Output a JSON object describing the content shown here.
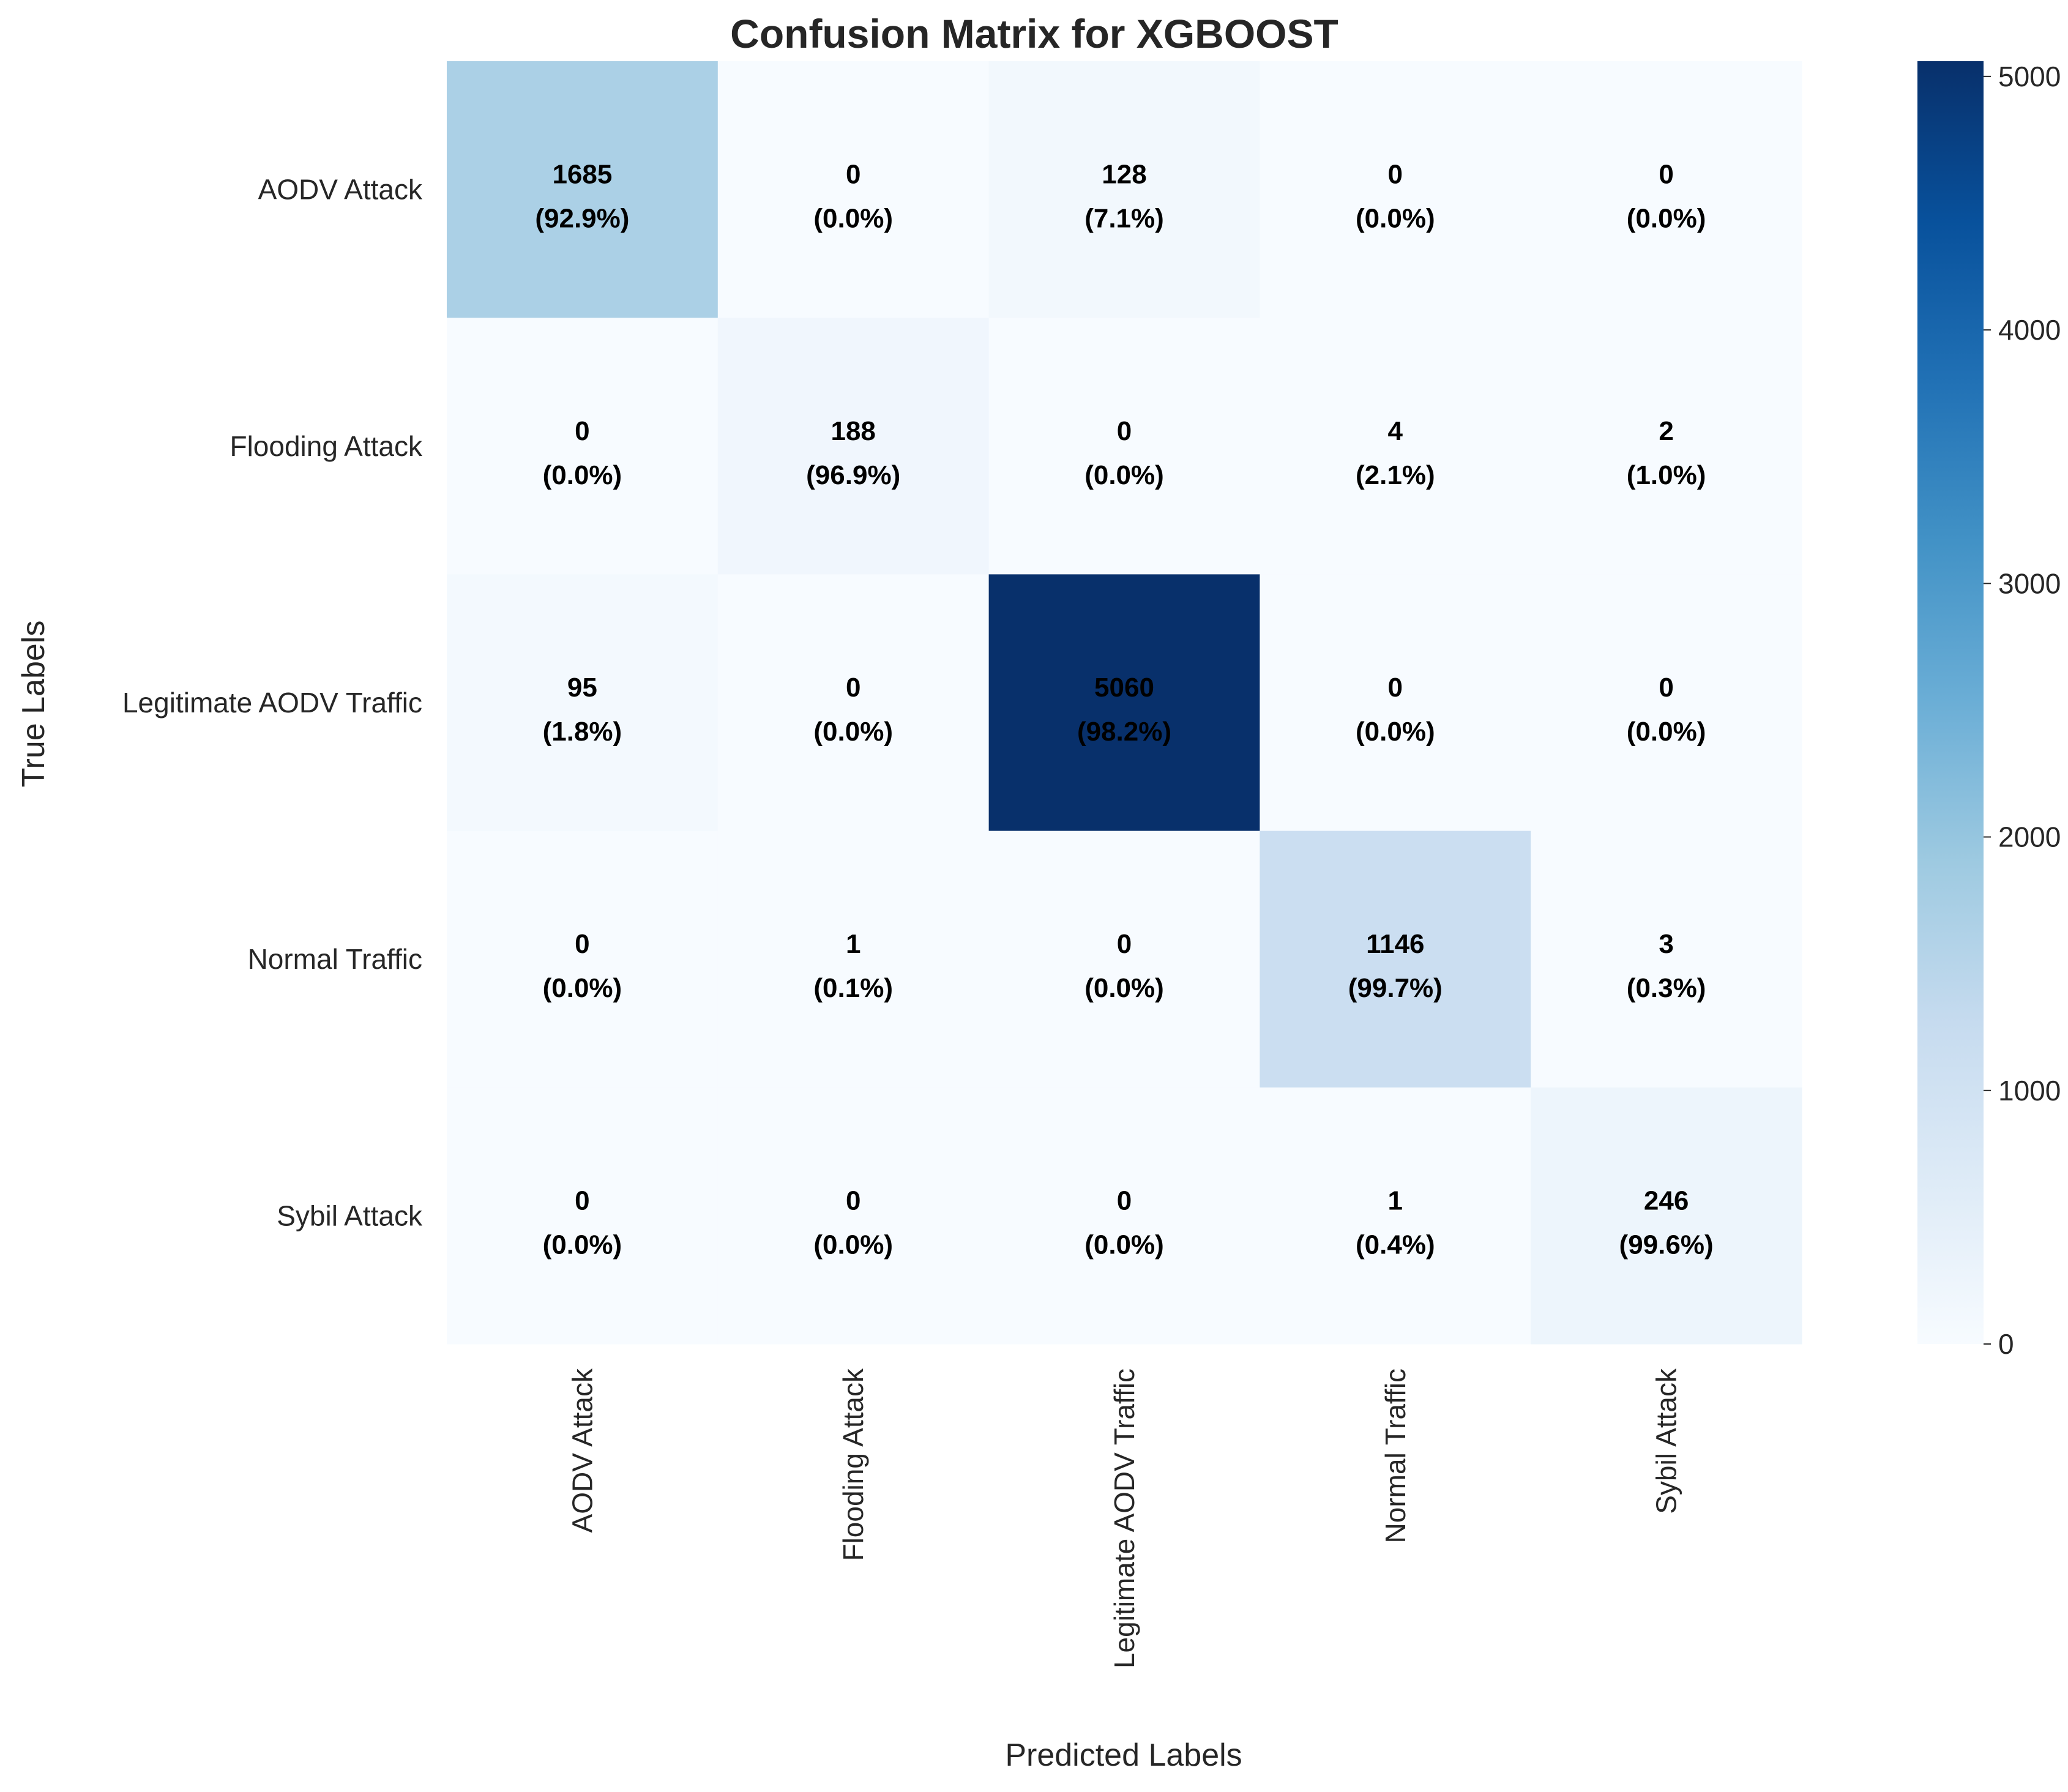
{
  "chart_data": {
    "type": "heatmap",
    "title": "Confusion Matrix for XGBOOST",
    "xlabel": "Predicted Labels",
    "ylabel": "True Labels",
    "x_categories": [
      "AODV Attack",
      "Flooding Attack",
      "Legitimate AODV Traffic",
      "Normal Traffic",
      "Sybil Attack"
    ],
    "y_categories": [
      "AODV Attack",
      "Flooding Attack",
      "Legitimate AODV Traffic",
      "Normal Traffic",
      "Sybil Attack"
    ],
    "values": [
      [
        1685,
        0,
        128,
        0,
        0
      ],
      [
        0,
        188,
        0,
        4,
        2
      ],
      [
        95,
        0,
        5060,
        0,
        0
      ],
      [
        0,
        1,
        0,
        1146,
        3
      ],
      [
        0,
        0,
        0,
        1,
        246
      ]
    ],
    "percent_labels": [
      [
        "(92.9%)",
        "(0.0%)",
        "(7.1%)",
        "(0.0%)",
        "(0.0%)"
      ],
      [
        "(0.0%)",
        "(96.9%)",
        "(0.0%)",
        "(2.1%)",
        "(1.0%)"
      ],
      [
        "(1.8%)",
        "(0.0%)",
        "(98.2%)",
        "(0.0%)",
        "(0.0%)"
      ],
      [
        "(0.0%)",
        "(0.1%)",
        "(0.0%)",
        "(99.7%)",
        "(0.3%)"
      ],
      [
        "(0.0%)",
        "(0.0%)",
        "(0.0%)",
        "(0.4%)",
        "(99.6%)"
      ]
    ],
    "colorbar": {
      "min": 0,
      "max": 5060,
      "ticks": [
        0,
        1000,
        2000,
        3000,
        4000,
        5000
      ],
      "colormap": "Blues",
      "color_low": "#f7fbff",
      "color_high": "#08306b"
    },
    "cell_text_color": "#000000",
    "grid": false
  }
}
